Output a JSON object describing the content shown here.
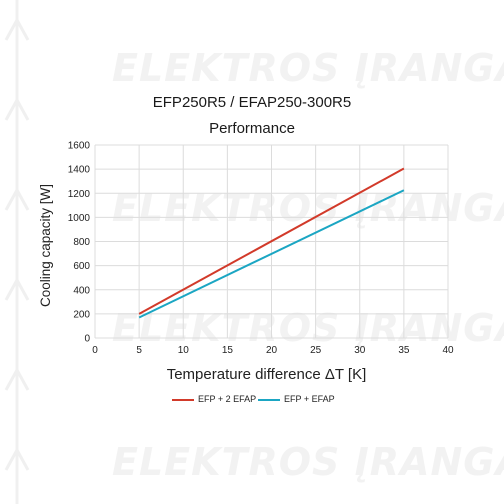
{
  "chart_data": {
    "type": "line",
    "title": "EFP250R5 / EFAP250-300R5",
    "subtitle": "Performance",
    "xlabel": "Temperature difference ΔT [K]",
    "ylabel": "Cooling capacity [W]",
    "xlim": [
      0,
      40
    ],
    "ylim": [
      0,
      1600
    ],
    "xticks": [
      0,
      5,
      10,
      15,
      20,
      25,
      30,
      35,
      40
    ],
    "yticks": [
      0,
      200,
      400,
      600,
      800,
      1000,
      1200,
      1400,
      1600
    ],
    "grid": true,
    "legend_position": "bottom",
    "series": [
      {
        "name": "EFP + 2 EFAP",
        "color": "#d23a2a",
        "x": [
          5,
          35
        ],
        "y": [
          200,
          1405
        ]
      },
      {
        "name": "EFP + EFAP",
        "color": "#1ba6c3",
        "x": [
          5,
          35
        ],
        "y": [
          170,
          1225
        ]
      }
    ]
  },
  "watermark": "ELEKTROS ĮRANGA"
}
